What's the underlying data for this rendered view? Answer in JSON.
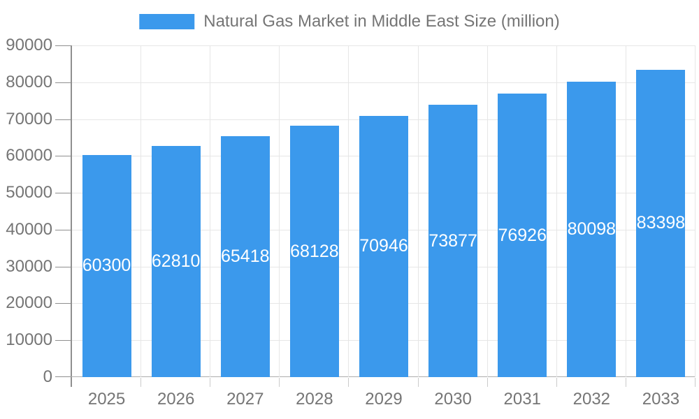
{
  "chart_data": {
    "type": "bar",
    "title": "Natural Gas Market in Middle East Size (million)",
    "series_name": "Natural Gas Market in Middle East Size (million)",
    "categories": [
      "2025",
      "2026",
      "2027",
      "2028",
      "2029",
      "2030",
      "2031",
      "2032",
      "2033"
    ],
    "values": [
      60300,
      62810,
      65418,
      68128,
      70946,
      73877,
      76926,
      80098,
      83398
    ],
    "value_labels_position": "inside-center",
    "xlabel": "",
    "ylabel": "",
    "ylim": [
      0,
      90000
    ],
    "yticks": [
      0,
      10000,
      20000,
      30000,
      40000,
      50000,
      60000,
      70000,
      80000,
      90000
    ],
    "grid": "on",
    "legend_position": "top-center",
    "colors": {
      "bar": "#3B99EC",
      "axis_text": "#757575",
      "gridline": "#e6e6e6",
      "axis_line": "#8f8f8f",
      "bar_value_text": "#ffffff"
    }
  }
}
